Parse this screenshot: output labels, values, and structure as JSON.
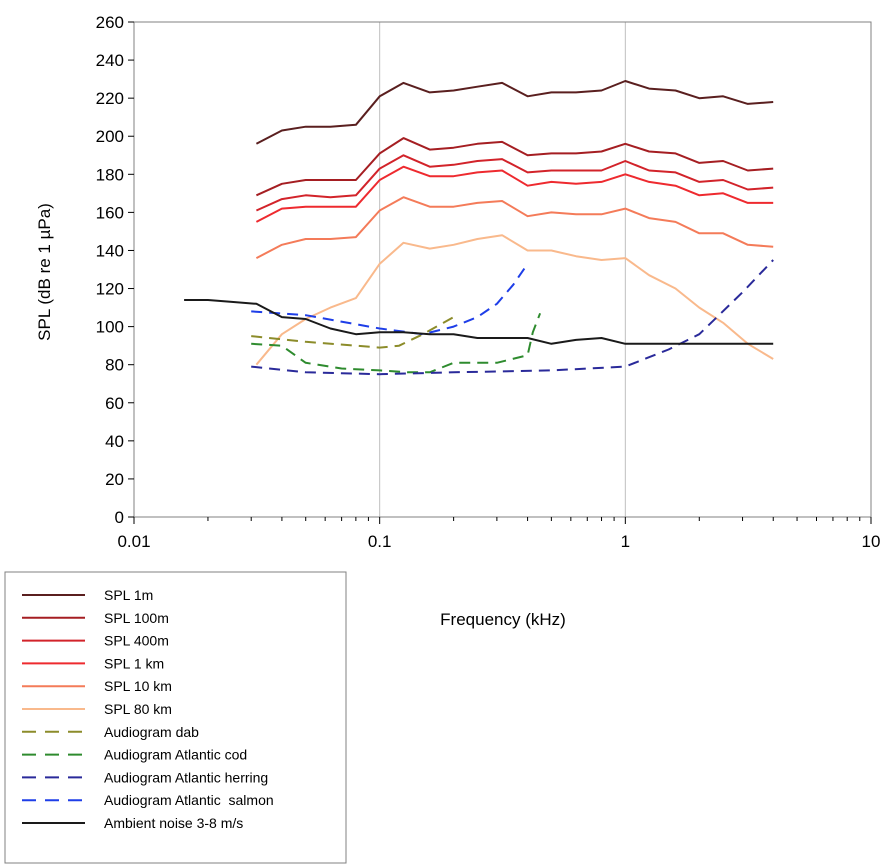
{
  "chart_data": {
    "type": "line",
    "xlabel": "Frequency (kHz)",
    "ylabel": "SPL (dB re 1 µPa)",
    "x_scale": "log",
    "xlim": [
      0.01,
      10
    ],
    "ylim": [
      0,
      260
    ],
    "x_ticks": [
      0.01,
      0.1,
      1,
      10
    ],
    "x_tick_labels": [
      "0.01",
      "0.1",
      "1",
      "10"
    ],
    "y_ticks": [
      0,
      20,
      40,
      60,
      80,
      100,
      120,
      140,
      160,
      180,
      200,
      220,
      240,
      260
    ],
    "y_tick_labels": [
      "0",
      "20",
      "40",
      "60",
      "80",
      "100",
      "120",
      "140",
      "160",
      "180",
      "200",
      "220",
      "240",
      "260"
    ],
    "grid": "vertical major at decades",
    "legend_position": "bottom-left",
    "series": [
      {
        "name": "SPL 1m",
        "color": "#5a1f1f",
        "style": "solid",
        "x": [
          0.0315,
          0.04,
          0.05,
          0.063,
          0.08,
          0.1,
          0.125,
          0.16,
          0.2,
          0.25,
          0.315,
          0.4,
          0.5,
          0.63,
          0.8,
          1.0,
          1.25,
          1.6,
          2.0,
          2.5,
          3.15,
          4.0
        ],
        "y": [
          196,
          203,
          205,
          205,
          206,
          221,
          228,
          223,
          224,
          226,
          228,
          221,
          223,
          223,
          224,
          229,
          225,
          224,
          220,
          221,
          217,
          218
        ]
      },
      {
        "name": "SPL 100m",
        "color": "#a51e22",
        "style": "solid",
        "x": [
          0.0315,
          0.04,
          0.05,
          0.063,
          0.08,
          0.1,
          0.125,
          0.16,
          0.2,
          0.25,
          0.315,
          0.4,
          0.5,
          0.63,
          0.8,
          1.0,
          1.25,
          1.6,
          2.0,
          2.5,
          3.15,
          4.0
        ],
        "y": [
          169,
          175,
          177,
          177,
          177,
          191,
          199,
          193,
          194,
          196,
          197,
          190,
          191,
          191,
          192,
          196,
          192,
          191,
          186,
          187,
          182,
          183
        ]
      },
      {
        "name": "SPL 400m",
        "color": "#d2232a",
        "style": "solid",
        "x": [
          0.0315,
          0.04,
          0.05,
          0.063,
          0.08,
          0.1,
          0.125,
          0.16,
          0.2,
          0.25,
          0.315,
          0.4,
          0.5,
          0.63,
          0.8,
          1.0,
          1.25,
          1.6,
          2.0,
          2.5,
          3.15,
          4.0
        ],
        "y": [
          161,
          167,
          169,
          168,
          169,
          183,
          190,
          184,
          185,
          187,
          188,
          181,
          182,
          182,
          182,
          187,
          182,
          181,
          176,
          177,
          172,
          173
        ]
      },
      {
        "name": "SPL 1 km",
        "color": "#ee2a2f",
        "style": "solid",
        "x": [
          0.0315,
          0.04,
          0.05,
          0.063,
          0.08,
          0.1,
          0.125,
          0.16,
          0.2,
          0.25,
          0.315,
          0.4,
          0.5,
          0.63,
          0.8,
          1.0,
          1.25,
          1.6,
          2.0,
          2.5,
          3.15,
          4.0
        ],
        "y": [
          155,
          162,
          163,
          163,
          163,
          177,
          184,
          179,
          179,
          181,
          182,
          174,
          176,
          175,
          176,
          180,
          176,
          174,
          169,
          170,
          165,
          165
        ]
      },
      {
        "name": "SPL 10 km",
        "color": "#f47b59",
        "style": "solid",
        "x": [
          0.0315,
          0.04,
          0.05,
          0.063,
          0.08,
          0.1,
          0.125,
          0.16,
          0.2,
          0.25,
          0.315,
          0.4,
          0.5,
          0.63,
          0.8,
          1.0,
          1.25,
          1.6,
          2.0,
          2.5,
          3.15,
          4.0
        ],
        "y": [
          136,
          143,
          146,
          146,
          147,
          161,
          168,
          163,
          163,
          165,
          166,
          158,
          160,
          159,
          159,
          162,
          157,
          155,
          149,
          149,
          143,
          142
        ]
      },
      {
        "name": "SPL 80 km",
        "color": "#f9b98c",
        "style": "solid",
        "x": [
          0.0315,
          0.04,
          0.05,
          0.063,
          0.08,
          0.1,
          0.125,
          0.16,
          0.2,
          0.25,
          0.315,
          0.4,
          0.5,
          0.63,
          0.8,
          1.0,
          1.25,
          1.6,
          2.0,
          2.5,
          3.15,
          4.0
        ],
        "y": [
          80,
          96,
          104,
          110,
          115,
          133,
          144,
          141,
          143,
          146,
          148,
          140,
          140,
          137,
          135,
          136,
          127,
          120,
          110,
          102,
          91,
          83
        ]
      },
      {
        "name": "Audiogram dab",
        "color": "#8c8c2a",
        "style": "dashed",
        "x": [
          0.03,
          0.05,
          0.08,
          0.1,
          0.12,
          0.15,
          0.2
        ],
        "y": [
          95,
          92,
          90,
          89,
          90,
          96,
          105
        ]
      },
      {
        "name": "Audiogram Atlantic cod",
        "color": "#2e8b2e",
        "style": "dashed",
        "x": [
          0.03,
          0.04,
          0.05,
          0.07,
          0.1,
          0.13,
          0.16,
          0.2,
          0.3,
          0.4,
          0.42,
          0.45
        ],
        "y": [
          91,
          90,
          81,
          78,
          77,
          76,
          76,
          81,
          81,
          85,
          97,
          107
        ]
      },
      {
        "name": "Audiogram Atlantic herring",
        "color": "#2a2a9a",
        "style": "dashed",
        "x": [
          0.03,
          0.05,
          0.1,
          0.2,
          0.5,
          1.0,
          1.5,
          2.0,
          3.0,
          4.0
        ],
        "y": [
          79,
          76,
          75,
          76,
          77,
          79,
          88,
          96,
          118,
          135
        ]
      },
      {
        "name": "Audiogram Atlantic  salmon",
        "color": "#1e3ee8",
        "style": "dashed",
        "x": [
          0.03,
          0.05,
          0.1,
          0.15,
          0.2,
          0.25,
          0.3,
          0.35,
          0.4
        ],
        "y": [
          108,
          106,
          99,
          96,
          100,
          105,
          112,
          122,
          133
        ]
      },
      {
        "name": "Ambient noise 3-8 m/s",
        "color": "#1a1a1a",
        "style": "solid",
        "x": [
          0.016,
          0.02,
          0.025,
          0.0315,
          0.04,
          0.05,
          0.063,
          0.08,
          0.1,
          0.125,
          0.16,
          0.2,
          0.25,
          0.315,
          0.4,
          0.5,
          0.63,
          0.8,
          1.0,
          1.25,
          1.6,
          2.0,
          2.5,
          3.15,
          4.0
        ],
        "y": [
          114,
          114,
          113,
          112,
          105,
          104,
          99,
          96,
          97,
          97,
          96,
          96,
          94,
          94,
          94,
          91,
          93,
          94,
          91,
          91,
          91,
          91,
          91,
          91,
          91
        ]
      }
    ]
  }
}
